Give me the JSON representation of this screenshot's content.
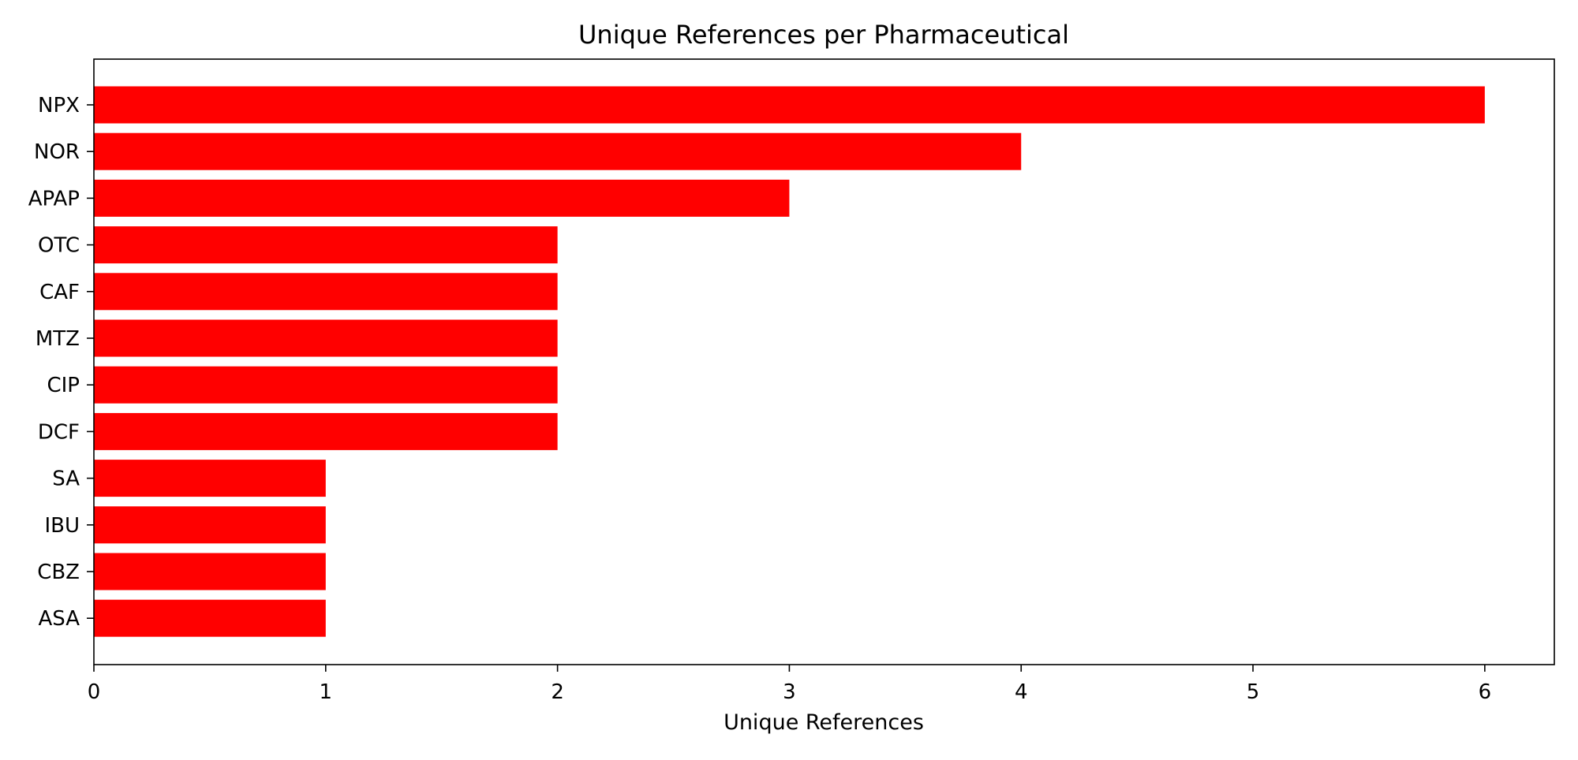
{
  "chart_data": {
    "type": "bar",
    "orientation": "horizontal",
    "title": "Unique References per Pharmaceutical",
    "xlabel": "Unique References",
    "ylabel": "",
    "categories": [
      "NPX",
      "NOR",
      "APAP",
      "OTC",
      "CAF",
      "MTZ",
      "CIP",
      "DCF",
      "SA",
      "IBU",
      "CBZ",
      "ASA"
    ],
    "values": [
      6,
      4,
      3,
      2,
      2,
      2,
      2,
      2,
      1,
      1,
      1,
      1
    ],
    "xlim": [
      0,
      6.3
    ],
    "xticks": [
      0,
      1,
      2,
      3,
      4,
      5,
      6
    ],
    "grid": false,
    "legend": "none",
    "bar_color": "#ff0000"
  }
}
